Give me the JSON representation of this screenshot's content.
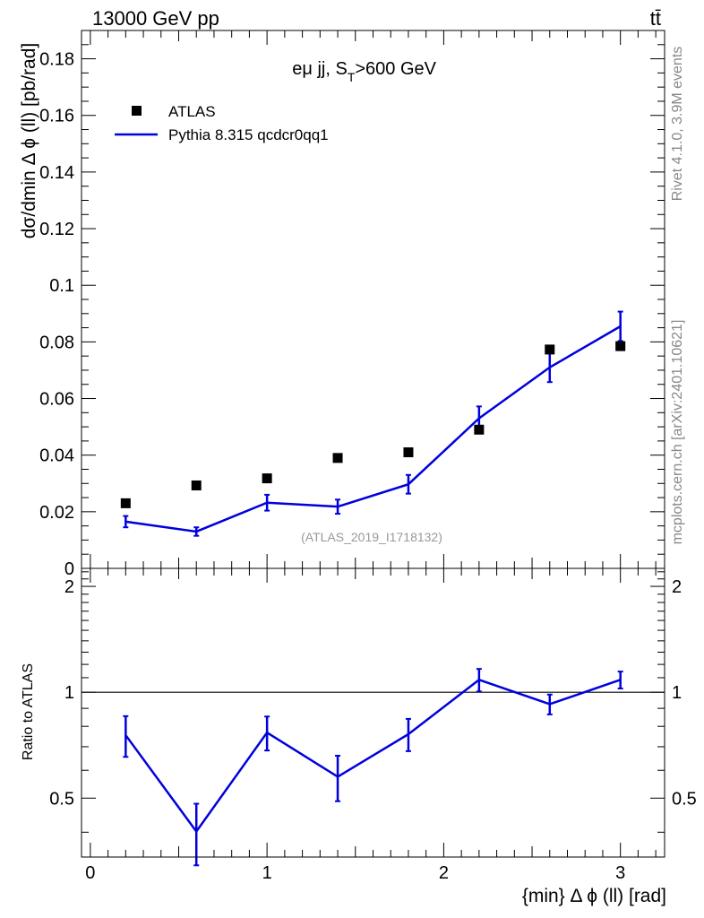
{
  "header": {
    "left": "13000 GeV pp",
    "right": "tt̄"
  },
  "side_labels": {
    "rivet": "Rivet 4.1.0,  3.9M events",
    "source": "mcplots.cern.ch [arXiv:2401.10621]"
  },
  "chart_data": [
    {
      "type": "scatter",
      "title": "eμ jj, S_T>600 GeV",
      "title_main": "eμ jj, S",
      "title_sub": "T",
      "title_end": ">600 GeV",
      "ylabel": "dσ/dmin Δ ϕ (ll) [pb/rad]",
      "xlabel": "",
      "ylim": [
        0,
        0.19
      ],
      "xlim": [
        -0.05,
        3.25
      ],
      "yticks": [
        0,
        0.02,
        0.04,
        0.06,
        0.08,
        0.1,
        0.12,
        0.14,
        0.16,
        0.18
      ],
      "ytick_labels": [
        "0",
        "0.02",
        "0.04",
        "0.06",
        "0.08",
        "0.1",
        "0.12",
        "0.14",
        "0.16",
        "0.18"
      ],
      "annotation": "(ATLAS_2019_I1718132)",
      "legend": [
        "ATLAS",
        "Pythia 8.315 qcdcr0qq1"
      ],
      "series": [
        {
          "name": "ATLAS",
          "style": "markers",
          "color": "#000000",
          "x": [
            0.2,
            0.6,
            1.0,
            1.4,
            1.8,
            2.2,
            2.6,
            3.0
          ],
          "values": [
            0.023,
            0.0293,
            0.0318,
            0.039,
            0.041,
            0.049,
            0.0773,
            0.0785
          ]
        },
        {
          "name": "Pythia 8.315 qcdcr0qq1",
          "style": "line",
          "color": "#0000dd",
          "x": [
            0.2,
            0.6,
            1.0,
            1.4,
            1.8,
            2.2,
            2.6,
            3.0
          ],
          "values": [
            0.0165,
            0.013,
            0.0232,
            0.0218,
            0.0297,
            0.053,
            0.071,
            0.0855
          ],
          "errors": [
            0.002,
            0.0015,
            0.0028,
            0.0025,
            0.0033,
            0.0042,
            0.0052,
            0.0052
          ]
        }
      ]
    },
    {
      "type": "line",
      "title": "",
      "ylabel": "Ratio to ATLAS",
      "xlabel": "{min} Δ ϕ (ll) [rad]",
      "ylim": [
        0.34,
        2.25
      ],
      "xlim": [
        -0.05,
        3.25
      ],
      "yticks": [
        0.5,
        1,
        2
      ],
      "ytick_labels": [
        "0.5",
        "1",
        "2"
      ],
      "xticks": [
        0,
        1,
        2,
        3
      ],
      "xtick_labels": [
        "0",
        "1",
        "2",
        "3"
      ],
      "reference_line": 1,
      "series": [
        {
          "name": "Pythia 8.315 qcdcr0qq1 / ATLAS",
          "color": "#0000dd",
          "x": [
            0.2,
            0.6,
            1.0,
            1.4,
            1.8,
            2.2,
            2.6,
            3.0
          ],
          "values": [
            0.755,
            0.402,
            0.768,
            0.575,
            0.76,
            1.085,
            0.925,
            1.085
          ],
          "errors": [
            0.1,
            0.08,
            0.085,
            0.085,
            0.08,
            0.08,
            0.06,
            0.06
          ]
        }
      ]
    }
  ]
}
